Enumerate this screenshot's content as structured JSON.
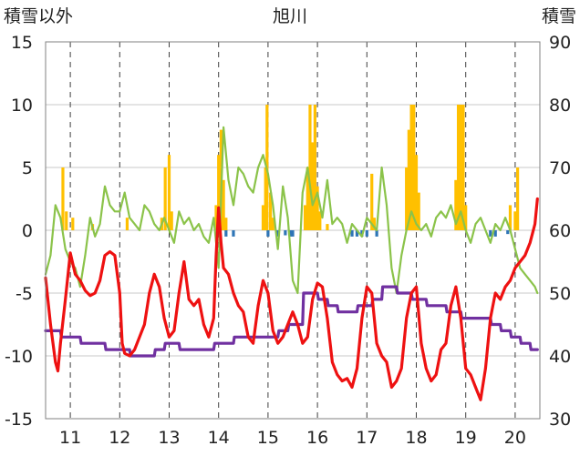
{
  "chart_data": {
    "type": "line",
    "title": "旭川",
    "ylabel_left": "積雪以外",
    "ylabel_right": "積雪",
    "ylim_left": [
      -15,
      15
    ],
    "ylim_right": [
      30,
      90
    ],
    "yticks_left": [
      -15,
      -10,
      -5,
      0,
      5,
      10,
      15
    ],
    "yticks_right": [
      30,
      40,
      50,
      60,
      70,
      80,
      90
    ],
    "xlim": [
      10.5,
      20.5
    ],
    "xticks": [
      11,
      12,
      13,
      14,
      15,
      16,
      17,
      18,
      19,
      20
    ],
    "xtick_labels": [
      "11",
      "12",
      "13",
      "14",
      "15",
      "16",
      "17",
      "18",
      "19",
      "20"
    ],
    "grid": true,
    "colors": {
      "temperature": "#ee1111",
      "wind": "#8bc34a",
      "snowfall": "#ffc000",
      "negative_bars": "#2e75b6",
      "snow_depth": "#7030a0"
    },
    "snowfall_bars": [
      [
        10.85,
        5.0
      ],
      [
        10.92,
        1.5
      ],
      [
        11.05,
        1.0
      ],
      [
        11.45,
        0.5
      ],
      [
        12.15,
        1.0
      ],
      [
        12.85,
        1.0
      ],
      [
        12.92,
        5.0
      ],
      [
        13.0,
        6.0
      ],
      [
        13.05,
        1.5
      ],
      [
        13.95,
        2.0
      ],
      [
        14.0,
        6.0
      ],
      [
        14.05,
        8.0
      ],
      [
        14.1,
        4.0
      ],
      [
        14.15,
        1.0
      ],
      [
        14.9,
        2.0
      ],
      [
        14.95,
        5.0
      ],
      [
        14.98,
        10.0
      ],
      [
        15.05,
        3.0
      ],
      [
        15.1,
        1.0
      ],
      [
        15.75,
        2.0
      ],
      [
        15.8,
        5.0
      ],
      [
        15.85,
        10.0
      ],
      [
        15.9,
        7.0
      ],
      [
        15.95,
        10.0
      ],
      [
        16.0,
        3.5
      ],
      [
        16.05,
        1.5
      ],
      [
        16.2,
        0.5
      ],
      [
        17.1,
        4.5
      ],
      [
        17.15,
        1.0
      ],
      [
        17.8,
        5.0
      ],
      [
        17.85,
        8.0
      ],
      [
        17.9,
        10.0
      ],
      [
        17.95,
        10.0
      ],
      [
        18.0,
        6.0
      ],
      [
        18.05,
        3.0
      ],
      [
        18.8,
        4.0
      ],
      [
        18.85,
        10.0
      ],
      [
        18.9,
        10.0
      ],
      [
        18.95,
        10.0
      ],
      [
        19.0,
        2.0
      ],
      [
        19.9,
        2.0
      ],
      [
        20.0,
        1.5
      ],
      [
        20.05,
        5.0
      ]
    ],
    "negative_bars": [
      [
        14.15,
        -0.5
      ],
      [
        14.3,
        -0.5
      ],
      [
        15.0,
        -0.5
      ],
      [
        15.2,
        -0.5
      ],
      [
        15.35,
        -0.4
      ],
      [
        15.45,
        -0.5
      ],
      [
        15.5,
        -0.5
      ],
      [
        16.7,
        -0.5
      ],
      [
        16.8,
        -0.5
      ],
      [
        16.9,
        -0.5
      ],
      [
        17.0,
        -0.5
      ],
      [
        17.2,
        -0.5
      ],
      [
        19.5,
        -0.5
      ],
      [
        19.6,
        -0.5
      ],
      [
        19.85,
        -0.3
      ]
    ],
    "series": [
      {
        "key": "temperature",
        "axis": "left",
        "x": [
          10.5,
          10.6,
          10.7,
          10.75,
          10.8,
          10.9,
          11.0,
          11.1,
          11.2,
          11.3,
          11.4,
          11.5,
          11.6,
          11.7,
          11.8,
          11.9,
          12.0,
          12.05,
          12.1,
          12.2,
          12.3,
          12.4,
          12.5,
          12.6,
          12.7,
          12.8,
          12.9,
          13.0,
          13.1,
          13.2,
          13.3,
          13.4,
          13.5,
          13.6,
          13.7,
          13.8,
          13.9,
          13.95,
          14.0,
          14.05,
          14.1,
          14.2,
          14.3,
          14.4,
          14.5,
          14.6,
          14.7,
          14.8,
          14.9,
          15.0,
          15.1,
          15.2,
          15.3,
          15.4,
          15.5,
          15.6,
          15.7,
          15.8,
          15.9,
          16.0,
          16.1,
          16.2,
          16.3,
          16.4,
          16.5,
          16.6,
          16.7,
          16.8,
          16.9,
          17.0,
          17.1,
          17.2,
          17.3,
          17.4,
          17.5,
          17.6,
          17.7,
          17.8,
          17.9,
          18.0,
          18.1,
          18.2,
          18.3,
          18.4,
          18.5,
          18.6,
          18.7,
          18.8,
          18.9,
          19.0,
          19.1,
          19.2,
          19.3,
          19.4,
          19.5,
          19.6,
          19.7,
          19.8,
          19.9,
          20.0,
          20.1,
          20.2,
          20.3,
          20.4,
          20.45
        ],
        "y": [
          -3.8,
          -7.5,
          -10.5,
          -11.2,
          -9.0,
          -5.5,
          -1.8,
          -3.5,
          -4.0,
          -4.8,
          -5.2,
          -5.0,
          -4.0,
          -2.0,
          -1.7,
          -2.0,
          -5.0,
          -9.0,
          -9.8,
          -10.0,
          -9.5,
          -8.5,
          -7.5,
          -5.0,
          -3.5,
          -4.5,
          -7.0,
          -8.5,
          -8.0,
          -5.0,
          -2.5,
          -5.5,
          -6.0,
          -5.5,
          -7.5,
          -8.5,
          -7.0,
          -2.0,
          1.8,
          -1.0,
          -3.0,
          -3.5,
          -5.0,
          -6.0,
          -6.5,
          -8.5,
          -9.0,
          -6.0,
          -4.0,
          -5.0,
          -8.0,
          -9.0,
          -8.5,
          -7.5,
          -6.5,
          -7.5,
          -9.0,
          -8.5,
          -5.5,
          -4.2,
          -4.5,
          -7.0,
          -10.5,
          -11.5,
          -12.0,
          -11.8,
          -12.5,
          -11.0,
          -7.0,
          -4.5,
          -5.0,
          -9.0,
          -10.0,
          -10.5,
          -12.5,
          -12.0,
          -11.0,
          -7.0,
          -5.0,
          -4.5,
          -9.0,
          -11.0,
          -12.0,
          -11.5,
          -9.5,
          -9.0,
          -6.0,
          -4.5,
          -7.0,
          -11.0,
          -11.5,
          -12.5,
          -13.5,
          -11.0,
          -7.0,
          -5.0,
          -5.5,
          -4.5,
          -4.0,
          -3.0,
          -2.5,
          -2.0,
          -1.0,
          0.5,
          2.5
        ]
      },
      {
        "key": "wind",
        "axis": "left",
        "x": [
          10.5,
          10.6,
          10.7,
          10.8,
          10.9,
          11.0,
          11.1,
          11.2,
          11.3,
          11.4,
          11.5,
          11.6,
          11.7,
          11.8,
          11.9,
          12.0,
          12.1,
          12.2,
          12.3,
          12.4,
          12.5,
          12.6,
          12.7,
          12.8,
          12.9,
          13.0,
          13.1,
          13.2,
          13.3,
          13.4,
          13.5,
          13.6,
          13.7,
          13.8,
          13.9,
          14.0,
          14.1,
          14.2,
          14.3,
          14.4,
          14.5,
          14.6,
          14.7,
          14.8,
          14.9,
          15.0,
          15.1,
          15.2,
          15.3,
          15.4,
          15.5,
          15.6,
          15.7,
          15.8,
          15.9,
          16.0,
          16.1,
          16.2,
          16.3,
          16.4,
          16.5,
          16.6,
          16.7,
          16.8,
          16.9,
          17.0,
          17.1,
          17.2,
          17.3,
          17.4,
          17.5,
          17.6,
          17.7,
          17.8,
          17.9,
          18.0,
          18.1,
          18.2,
          18.3,
          18.4,
          18.5,
          18.6,
          18.7,
          18.8,
          18.9,
          19.0,
          19.1,
          19.2,
          19.3,
          19.4,
          19.5,
          19.6,
          19.7,
          19.8,
          19.9,
          20.0,
          20.1,
          20.2,
          20.3,
          20.4,
          20.45
        ],
        "y": [
          -3.5,
          -2.0,
          2.0,
          1.0,
          -1.5,
          -2.5,
          -3.0,
          -4.5,
          -2.0,
          1.0,
          -0.5,
          0.5,
          3.5,
          2.0,
          1.5,
          1.5,
          3.0,
          1.0,
          0.5,
          0.0,
          2.0,
          1.5,
          0.5,
          0.0,
          1.0,
          0.0,
          -1.0,
          1.5,
          0.5,
          1.0,
          0.0,
          0.5,
          -0.5,
          -1.0,
          1.0,
          -3.0,
          8.2,
          4.0,
          2.0,
          5.0,
          4.5,
          3.5,
          3.0,
          5.0,
          6.0,
          4.5,
          2.0,
          -1.5,
          3.5,
          1.0,
          -4.0,
          -5.0,
          3.0,
          5.0,
          2.0,
          3.0,
          1.0,
          4.0,
          0.5,
          1.0,
          0.5,
          -1.0,
          0.5,
          0.0,
          -0.5,
          1.0,
          0.5,
          0.0,
          5.0,
          2.0,
          -3.0,
          -5.0,
          -2.0,
          0.0,
          1.5,
          0.5,
          0.0,
          0.5,
          -0.5,
          1.0,
          1.5,
          1.0,
          2.0,
          0.5,
          1.5,
          0.0,
          -1.0,
          0.5,
          1.0,
          0.0,
          -1.0,
          0.5,
          0.0,
          1.0,
          0.0,
          -1.5,
          -3.0,
          -3.5,
          -4.0,
          -4.5,
          -5.0
        ]
      },
      {
        "key": "snow_depth",
        "axis": "right",
        "x": [
          10.5,
          10.8,
          10.82,
          11.2,
          11.22,
          11.7,
          11.72,
          12.2,
          12.22,
          12.7,
          12.72,
          12.9,
          12.92,
          13.2,
          13.22,
          13.4,
          13.42,
          13.9,
          13.92,
          14.3,
          14.32,
          14.4,
          14.42,
          14.9,
          14.92,
          15.2,
          15.22,
          15.4,
          15.42,
          15.7,
          15.72,
          16.0,
          16.02,
          16.2,
          16.22,
          16.4,
          16.42,
          16.8,
          16.82,
          17.1,
          17.12,
          17.3,
          17.32,
          17.6,
          17.62,
          17.9,
          17.92,
          18.2,
          18.22,
          18.6,
          18.62,
          18.9,
          18.92,
          19.2,
          19.22,
          19.5,
          19.52,
          19.7,
          19.72,
          19.9,
          19.92,
          20.1,
          20.12,
          20.3,
          20.32,
          20.45
        ],
        "y": [
          44,
          44,
          43,
          43,
          42,
          42,
          41,
          41,
          40,
          40,
          41,
          41,
          42,
          42,
          41,
          41,
          41,
          41,
          42,
          42,
          43,
          43,
          43,
          43,
          43,
          43,
          44,
          44,
          45,
          45,
          50,
          50,
          49,
          49,
          48,
          48,
          47,
          47,
          48,
          48,
          49,
          49,
          51,
          51,
          50,
          50,
          49,
          49,
          48,
          48,
          47,
          47,
          46,
          46,
          46,
          46,
          45,
          45,
          44,
          44,
          43,
          43,
          42,
          42,
          41,
          41
        ]
      }
    ]
  }
}
